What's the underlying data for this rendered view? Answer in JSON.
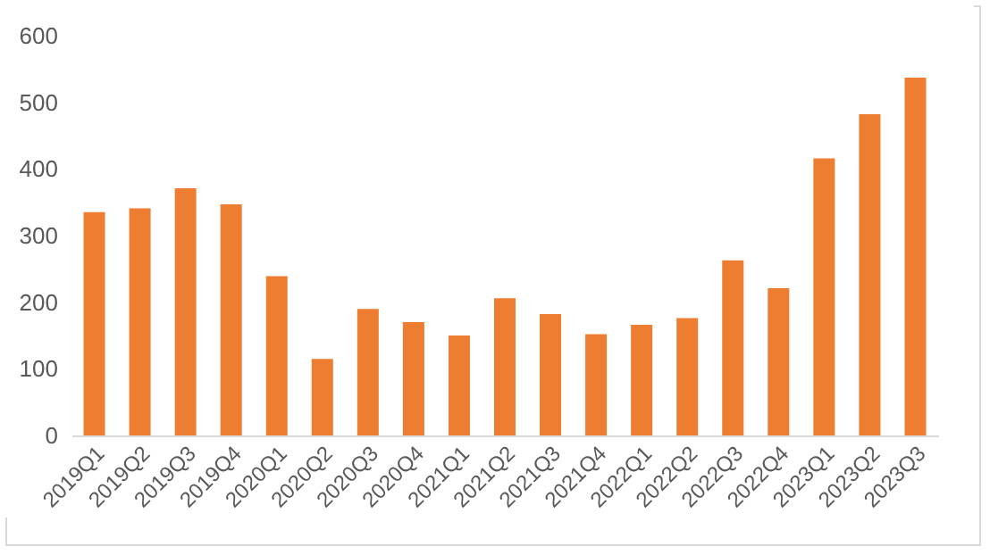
{
  "chart_data": {
    "type": "bar",
    "categories": [
      "2019Q1",
      "2019Q2",
      "2019Q3",
      "2019Q4",
      "2020Q1",
      "2020Q2",
      "2020Q3",
      "2020Q4",
      "2021Q1",
      "2021Q2",
      "2021Q3",
      "2021Q4",
      "2022Q1",
      "2022Q2",
      "2022Q3",
      "2022Q4",
      "2023Q1",
      "2023Q2",
      "2023Q3"
    ],
    "values": [
      335,
      341,
      371,
      347,
      239,
      115,
      190,
      170,
      150,
      206,
      182,
      152,
      166,
      176,
      263,
      221,
      416,
      482,
      537
    ],
    "color": "#ed7d31",
    "ylim": [
      0,
      600
    ],
    "yticks": [
      0,
      100,
      200,
      300,
      400,
      500,
      600
    ],
    "grid": false
  }
}
